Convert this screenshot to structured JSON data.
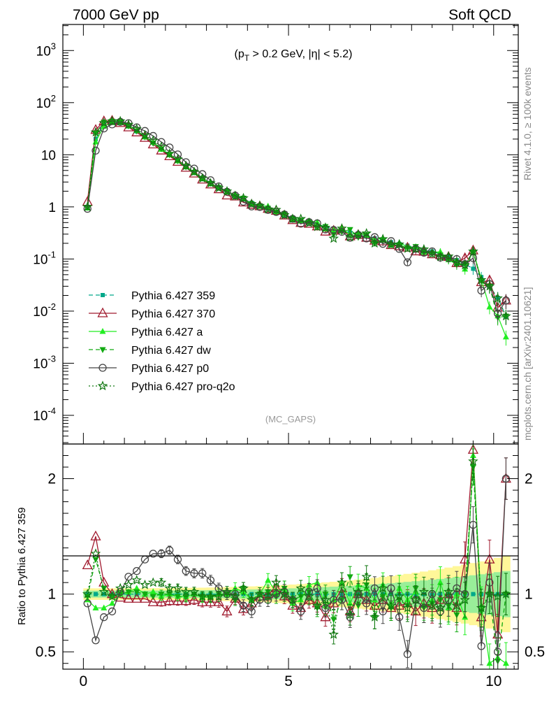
{
  "header": {
    "left": "7000 GeV pp",
    "right": "Soft QCD",
    "cut_label": "(p_T > 0.2 GeV, |η| < 5.2)",
    "side_note_1": "Rivet 4.1.0, ≥ 100k events",
    "side_note_2": "mcplots.cern.ch [arXiv:2401.10621]",
    "analysis": "(MC_GAPS)",
    "ratio_ylabel": "Ratio to Pythia 6.427 359"
  },
  "colors": {
    "c359": "#00a88a",
    "c370": "#a01a2e",
    "ca": "#22ee22",
    "cdw": "#11aa11",
    "cp0": "#444444",
    "cq2o": "#117711",
    "band_yellow": "#fff799",
    "band_green": "#99ee99"
  },
  "chart_data": {
    "type": "line",
    "title": "Soft QCD",
    "xlabel": "",
    "ylabel_main": "",
    "ylabel_ratio": "Ratio to Pythia 6.427 359",
    "xlim": [
      -0.5,
      10.6
    ],
    "ylim_main_log10": [
      -4.55,
      3.5
    ],
    "ylim_ratio": [
      0.35,
      2.3
    ],
    "x_ticks": [
      "0",
      "5",
      "10"
    ],
    "y_ticks_main": [
      "10^-4",
      "10^-3",
      "10^-2",
      "10^-1",
      "1",
      "10",
      "10^2",
      "10^3"
    ],
    "y_ticks_ratio": [
      "0.5",
      "1",
      "2"
    ],
    "x": [
      0.1,
      0.3,
      0.5,
      0.7,
      0.9,
      1.1,
      1.3,
      1.5,
      1.7,
      1.9,
      2.1,
      2.3,
      2.5,
      2.7,
      2.9,
      3.1,
      3.3,
      3.5,
      3.7,
      3.9,
      4.1,
      4.3,
      4.5,
      4.7,
      4.9,
      5.1,
      5.3,
      5.5,
      5.7,
      5.9,
      6.1,
      6.3,
      6.5,
      6.7,
      6.9,
      7.1,
      7.3,
      7.5,
      7.7,
      7.9,
      8.1,
      8.3,
      8.5,
      8.7,
      8.9,
      9.1,
      9.3,
      9.5,
      9.7,
      9.9,
      10.1,
      10.3
    ],
    "reference": [
      1.0,
      20,
      40,
      45,
      42,
      35,
      28,
      22,
      17,
      13,
      10,
      7.8,
      6.0,
      4.6,
      3.6,
      2.9,
      2.35,
      1.95,
      1.65,
      1.4,
      1.2,
      1.05,
      0.92,
      0.8,
      0.7,
      0.62,
      0.56,
      0.5,
      0.46,
      0.42,
      0.38,
      0.35,
      0.32,
      0.29,
      0.27,
      0.25,
      0.23,
      0.21,
      0.195,
      0.18,
      0.165,
      0.15,
      0.14,
      0.125,
      0.11,
      0.095,
      0.08,
      0.065,
      0.045,
      0.03,
      0.018,
      0.008
    ],
    "series": [
      {
        "name": "Pythia 6.427 359",
        "marker": "square-filled",
        "dash": "dashed",
        "color_key": "c359",
        "ratio": [
          1.0,
          1.0,
          1.0,
          1.0,
          1.0,
          1.0,
          1.0,
          1.0,
          1.0,
          1.0,
          1.0,
          1.0,
          1.0,
          1.0,
          1.0,
          1.0,
          1.0,
          1.0,
          1.0,
          1.0,
          1.0,
          1.0,
          1.0,
          1.0,
          1.0,
          1.0,
          1.0,
          1.0,
          1.0,
          1.0,
          1.0,
          1.0,
          1.0,
          1.0,
          1.0,
          1.0,
          1.0,
          1.0,
          1.0,
          1.0,
          1.0,
          1.0,
          1.0,
          1.0,
          1.0,
          1.0,
          1.0,
          1.0,
          1.0,
          1.0,
          1.0,
          1.0
        ]
      },
      {
        "name": "Pythia 6.427 370",
        "marker": "triangle-open",
        "dash": "solid",
        "color_key": "c370",
        "ratio": [
          1.25,
          1.5,
          1.1,
          1.0,
          0.97,
          0.96,
          0.96,
          0.96,
          0.93,
          0.93,
          0.94,
          0.94,
          0.94,
          0.95,
          0.93,
          0.93,
          0.93,
          0.85,
          0.96,
          0.87,
          0.92,
          0.98,
          1.0,
          1.05,
          0.98,
          0.9,
          0.88,
          0.95,
          0.92,
          0.8,
          0.92,
          1.05,
          0.85,
          1.0,
          0.95,
          0.9,
          0.95,
          0.88,
          0.9,
          0.92,
          0.85,
          0.92,
          0.88,
          0.95,
          1.0,
          0.88,
          1.3,
          2.25,
          0.8,
          1.3,
          0.65,
          2.0
        ]
      },
      {
        "name": "Pythia 6.427 a",
        "marker": "triangle-filled",
        "dash": "solid",
        "color_key": "ca",
        "ratio": [
          0.95,
          0.88,
          0.88,
          0.92,
          1.0,
          1.02,
          1.05,
          1.0,
          1.02,
          0.98,
          1.0,
          0.98,
          0.98,
          1.0,
          0.97,
          0.98,
          1.0,
          1.0,
          1.05,
          1.02,
          0.95,
          1.0,
          1.12,
          1.02,
          1.05,
          0.92,
          0.95,
          1.08,
          1.1,
          0.9,
          0.95,
          1.1,
          0.92,
          1.08,
          1.05,
          0.95,
          1.08,
          0.9,
          1.05,
          0.95,
          1.02,
          0.9,
          0.95,
          1.1,
          0.88,
          1.0,
          0.8,
          2.2,
          0.9,
          0.4,
          0.45,
          0.4
        ]
      },
      {
        "name": "Pythia 6.427 dw",
        "marker": "triangle-down-filled",
        "dash": "dashed",
        "color_key": "cdw",
        "ratio": [
          0.98,
          1.3,
          1.05,
          0.98,
          1.0,
          1.02,
          1.02,
          1.0,
          0.98,
          1.0,
          1.0,
          0.98,
          0.97,
          1.0,
          0.98,
          0.97,
          1.0,
          1.0,
          0.95,
          1.05,
          0.95,
          1.0,
          1.02,
          0.98,
          1.05,
          0.95,
          0.98,
          1.02,
          0.88,
          1.0,
          0.78,
          0.95,
          1.15,
          0.9,
          1.08,
          0.8,
          0.98,
          0.88,
          0.95,
          0.9,
          1.05,
          0.88,
          0.92,
          0.95,
          0.9,
          0.82,
          1.0,
          2.1,
          0.85,
          1.0,
          0.42,
          1.0
        ]
      },
      {
        "name": "Pythia 6.427 p0",
        "marker": "circle-open",
        "dash": "solid",
        "color_key": "cp0",
        "ratio": [
          0.92,
          0.6,
          0.8,
          0.85,
          1.02,
          1.15,
          1.2,
          1.3,
          1.35,
          1.35,
          1.38,
          1.3,
          1.2,
          1.18,
          1.18,
          1.12,
          1.05,
          1.0,
          1.0,
          0.9,
          0.85,
          0.95,
          0.95,
          1.0,
          1.02,
          0.95,
          0.85,
          1.02,
          1.05,
          0.88,
          0.95,
          0.95,
          0.8,
          1.0,
          0.92,
          1.05,
          0.85,
          1.05,
          0.8,
          0.48,
          0.95,
          0.88,
          1.0,
          0.85,
          0.95,
          1.05,
          1.0,
          1.6,
          0.55,
          1.1,
          0.5,
          2.0
        ]
      },
      {
        "name": "Pythia 6.427 pro-q2o",
        "marker": "star-open",
        "dash": "dotted",
        "color_key": "cq2o",
        "ratio": [
          1.0,
          1.35,
          1.02,
          0.98,
          1.05,
          1.08,
          1.12,
          1.08,
          1.1,
          1.1,
          1.05,
          1.05,
          1.02,
          1.02,
          0.98,
          0.98,
          0.98,
          1.02,
          0.98,
          1.05,
          0.95,
          1.0,
          0.98,
          1.1,
          1.0,
          0.95,
          1.05,
          0.98,
          0.9,
          0.95,
          0.65,
          1.1,
          0.82,
          1.02,
          1.15,
          0.8,
          1.05,
          0.9,
          0.98,
          0.88,
          0.95,
          1.02,
          0.9,
          0.88,
          1.02,
          0.9,
          0.95,
          2.15,
          0.88,
          1.0,
          0.98,
          1.0
        ]
      }
    ]
  }
}
